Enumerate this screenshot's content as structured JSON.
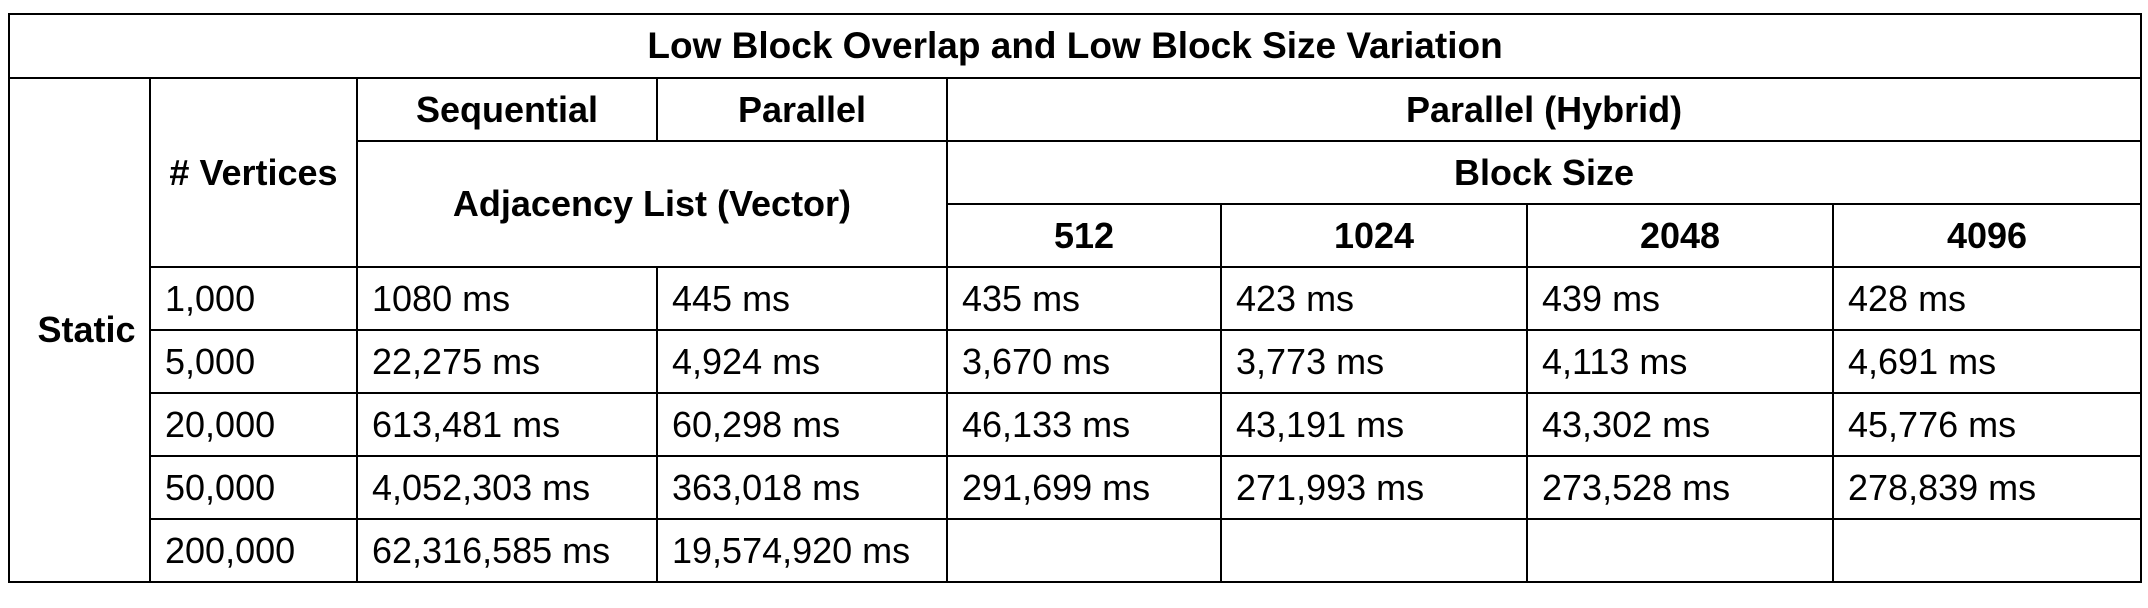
{
  "table": {
    "title": "Low Block Overlap and Low Block Size Variation",
    "row_group_label": "Static",
    "headers": {
      "vertices": "# Vertices",
      "sequential": "Sequential",
      "parallel": "Parallel",
      "parallel_hybrid": "Parallel (Hybrid)",
      "adjacency_list": "Adjacency List (Vector)",
      "block_size": "Block Size",
      "block_sizes": [
        "512",
        "1024",
        "2048",
        "4096"
      ]
    },
    "rows": [
      [
        "1,000",
        "1080 ms",
        "445 ms",
        "435 ms",
        "423 ms",
        "439 ms",
        "428 ms"
      ],
      [
        "5,000",
        "22,275 ms",
        "4,924 ms",
        "3,670 ms",
        "3,773 ms",
        "4,113 ms",
        "4,691 ms"
      ],
      [
        "20,000",
        "613,481 ms",
        "60,298 ms",
        "46,133 ms",
        "43,191 ms",
        "43,302 ms",
        "45,776 ms"
      ],
      [
        "50,000",
        "4,052,303 ms",
        "363,018 ms",
        "291,699 ms",
        "271,993 ms",
        "273,528 ms",
        "278,839 ms"
      ],
      [
        "200,000",
        "62,316,585 ms",
        "19,574,920 ms",
        "",
        "",
        "",
        ""
      ]
    ]
  }
}
